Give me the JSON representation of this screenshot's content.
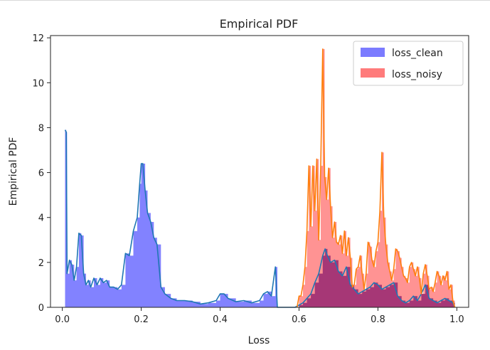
{
  "chart_data": {
    "type": "area",
    "title": "Empirical PDF",
    "xlabel": "Loss",
    "ylabel": "Empirical PDF",
    "xlim": [
      -0.03,
      1.03
    ],
    "ylim": [
      0,
      12.1
    ],
    "xticks": [
      0.0,
      0.2,
      0.4,
      0.6,
      0.8,
      1.0
    ],
    "xtick_labels": [
      "0.0",
      "0.2",
      "0.4",
      "0.6",
      "0.8",
      "1.0"
    ],
    "yticks": [
      0,
      2,
      4,
      6,
      8,
      10,
      12
    ],
    "ytick_labels": [
      "0",
      "2",
      "4",
      "6",
      "8",
      "10",
      "12"
    ],
    "grid": false,
    "legend_position": "top-right",
    "series": [
      {
        "name": "loss_clean",
        "fill_color": "#7b7bff",
        "line_color": "#1f77b4",
        "x": [
          0.007,
          0.01,
          0.012,
          0.018,
          0.024,
          0.03,
          0.036,
          0.042,
          0.048,
          0.054,
          0.06,
          0.066,
          0.072,
          0.08,
          0.088,
          0.096,
          0.104,
          0.112,
          0.12,
          0.13,
          0.14,
          0.15,
          0.16,
          0.17,
          0.18,
          0.19,
          0.196,
          0.2,
          0.204,
          0.21,
          0.216,
          0.224,
          0.232,
          0.24,
          0.25,
          0.26,
          0.275,
          0.29,
          0.31,
          0.33,
          0.35,
          0.37,
          0.39,
          0.4,
          0.41,
          0.42,
          0.44,
          0.46,
          0.48,
          0.5,
          0.51,
          0.52,
          0.53,
          0.54,
          0.545,
          0.55,
          0.56,
          0.57,
          0.58,
          0.59,
          0.6,
          0.61,
          0.62,
          0.63,
          0.64,
          0.65,
          0.66,
          0.666,
          0.672,
          0.68,
          0.69,
          0.7,
          0.71,
          0.72,
          0.73,
          0.74,
          0.75,
          0.76,
          0.77,
          0.78,
          0.79,
          0.8,
          0.81,
          0.82,
          0.83,
          0.84,
          0.85,
          0.86,
          0.87,
          0.88,
          0.89,
          0.9,
          0.91,
          0.92,
          0.93,
          0.94,
          0.95,
          0.96,
          0.97,
          0.98,
          0.99,
          0.995
        ],
        "y": [
          7.9,
          7.8,
          1.5,
          2.1,
          1.9,
          1.2,
          1.8,
          3.3,
          3.2,
          1.5,
          1.0,
          1.2,
          0.9,
          1.3,
          1.0,
          1.3,
          1.1,
          1.2,
          0.9,
          0.9,
          0.8,
          1.0,
          2.4,
          2.3,
          3.4,
          4.0,
          5.5,
          6.4,
          6.4,
          5.2,
          4.2,
          3.8,
          3.1,
          2.8,
          0.9,
          0.6,
          0.4,
          0.3,
          0.3,
          0.25,
          0.15,
          0.2,
          0.3,
          0.6,
          0.6,
          0.4,
          0.25,
          0.3,
          0.2,
          0.3,
          0.6,
          0.7,
          0.5,
          1.8,
          0.0,
          0.0,
          0.0,
          0.0,
          0.0,
          0.0,
          0.1,
          0.2,
          0.4,
          0.6,
          1.1,
          1.5,
          2.3,
          2.6,
          2.3,
          2.0,
          2.1,
          1.6,
          1.4,
          1.8,
          1.0,
          0.8,
          0.6,
          0.7,
          0.8,
          0.9,
          1.1,
          1.0,
          0.8,
          0.9,
          1.0,
          1.1,
          0.5,
          0.3,
          0.2,
          0.3,
          0.5,
          0.3,
          0.6,
          1.0,
          0.4,
          0.3,
          0.2,
          0.3,
          0.4,
          0.3,
          0.2,
          0.0
        ]
      },
      {
        "name": "loss_noisy",
        "fill_color": "#ff7b7b",
        "line_color": "#ff7f0e",
        "x": [
          0.595,
          0.6,
          0.605,
          0.61,
          0.615,
          0.62,
          0.625,
          0.63,
          0.635,
          0.64,
          0.645,
          0.65,
          0.655,
          0.66,
          0.665,
          0.67,
          0.675,
          0.68,
          0.685,
          0.69,
          0.695,
          0.7,
          0.705,
          0.71,
          0.715,
          0.72,
          0.725,
          0.73,
          0.735,
          0.74,
          0.745,
          0.75,
          0.755,
          0.76,
          0.765,
          0.77,
          0.775,
          0.78,
          0.785,
          0.79,
          0.795,
          0.8,
          0.805,
          0.81,
          0.815,
          0.82,
          0.825,
          0.83,
          0.835,
          0.84,
          0.845,
          0.85,
          0.855,
          0.86,
          0.865,
          0.87,
          0.875,
          0.88,
          0.885,
          0.89,
          0.895,
          0.9,
          0.905,
          0.91,
          0.915,
          0.92,
          0.925,
          0.93,
          0.935,
          0.94,
          0.945,
          0.95,
          0.955,
          0.96,
          0.965,
          0.97,
          0.975,
          0.98,
          0.985,
          0.99,
          0.995
        ],
        "y": [
          0.0,
          0.5,
          0.5,
          1.0,
          1.8,
          3.4,
          6.3,
          3.6,
          6.3,
          4.3,
          6.6,
          3.0,
          6.3,
          11.5,
          5.8,
          4.8,
          6.2,
          4.5,
          3.1,
          3.8,
          2.9,
          2.8,
          3.2,
          2.4,
          3.4,
          2.3,
          3.1,
          2.2,
          0.9,
          1.0,
          1.7,
          1.8,
          2.3,
          1.5,
          0.8,
          1.5,
          2.9,
          2.7,
          2.1,
          1.8,
          2.5,
          2.9,
          4.3,
          6.9,
          4.0,
          2.8,
          2.0,
          1.6,
          1.2,
          1.7,
          2.6,
          2.5,
          2.2,
          1.8,
          1.4,
          1.3,
          1.1,
          1.8,
          2.0,
          1.7,
          1.4,
          1.8,
          1.3,
          0.6,
          1.5,
          1.9,
          1.4,
          0.8,
          0.9,
          0.7,
          1.1,
          1.6,
          1.4,
          1.0,
          1.4,
          1.2,
          1.6,
          0.8,
          1.0,
          0.3,
          0.0
        ]
      }
    ]
  }
}
